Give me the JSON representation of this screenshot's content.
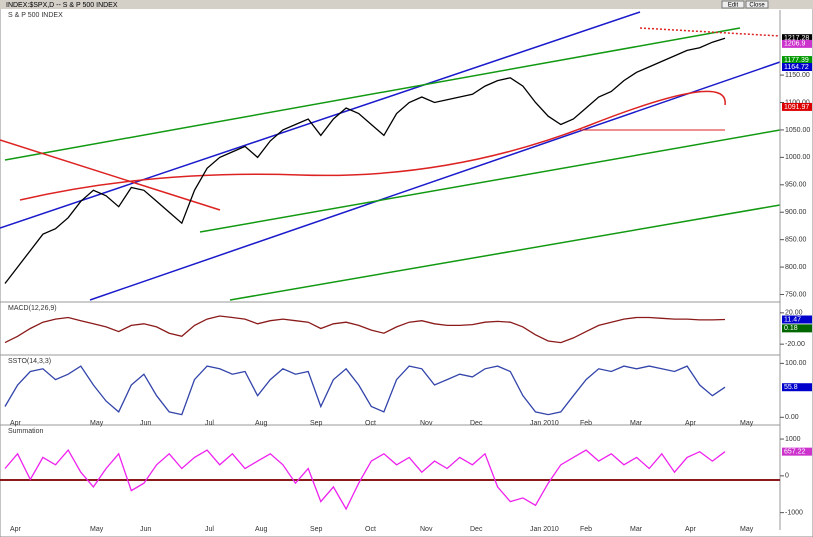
{
  "window_title": "INDEX:$SPX,D -- S & P 500 INDEX",
  "buttons": [
    "Edit",
    "Close"
  ],
  "months": [
    "Apr",
    "May",
    "Jun",
    "Jul",
    "Aug",
    "Sep",
    "Oct",
    "Nov",
    "Dec",
    "Jan 2010",
    "Feb",
    "Mar",
    "Apr",
    "May"
  ],
  "chart_data": [
    {
      "type": "line",
      "title": "S & P 500 INDEX",
      "color": "#000000",
      "values": [
        770,
        800,
        830,
        860,
        870,
        890,
        920,
        940,
        930,
        910,
        945,
        940,
        920,
        900,
        880,
        940,
        980,
        1000,
        1010,
        1020,
        1000,
        1030,
        1050,
        1060,
        1070,
        1040,
        1070,
        1090,
        1080,
        1060,
        1040,
        1080,
        1100,
        1110,
        1100,
        1105,
        1110,
        1115,
        1130,
        1140,
        1145,
        1130,
        1100,
        1075,
        1060,
        1070,
        1090,
        1110,
        1120,
        1140,
        1155,
        1165,
        1175,
        1185,
        1195,
        1200,
        1210,
        1217.28
      ],
      "ylim": [
        740,
        1265
      ],
      "yticks": [
        {
          "value": 750,
          "label": "750.00"
        },
        {
          "value": 800,
          "label": "800.00"
        },
        {
          "value": 850,
          "label": "850.00"
        },
        {
          "value": 900,
          "label": "900.00"
        },
        {
          "value": 950,
          "label": "950.00"
        },
        {
          "value": 1000,
          "label": "1000.00"
        },
        {
          "value": 1050,
          "label": "1050.00"
        },
        {
          "value": 1100,
          "label": "1100.00"
        },
        {
          "value": 1150,
          "label": "1150.00"
        }
      ],
      "price_labels": [
        {
          "value": 1217.28,
          "color": "#000000"
        },
        {
          "value": 1206.9,
          "color": "#cc33cc"
        },
        {
          "value": 1177.39,
          "color": "#009900"
        },
        {
          "value": 1164.72,
          "color": "#0000cc"
        },
        {
          "value": 1091.97,
          "color": "#dd0000"
        }
      ]
    },
    {
      "type": "line",
      "title": "MACD(12,26,9)",
      "color": "#8b1a1a",
      "values": [
        -18,
        -10,
        0,
        8,
        12,
        14,
        10,
        6,
        2,
        -4,
        4,
        6,
        2,
        -6,
        -10,
        4,
        12,
        16,
        14,
        12,
        6,
        10,
        12,
        10,
        8,
        0,
        6,
        8,
        4,
        -2,
        -6,
        2,
        8,
        10,
        6,
        4,
        4,
        5,
        8,
        9,
        8,
        2,
        -8,
        -16,
        -18,
        -12,
        -4,
        4,
        8,
        12,
        14,
        14,
        13,
        12,
        12,
        11,
        11,
        11.47
      ],
      "ylim": [
        -30,
        30
      ],
      "yticks": [
        {
          "value": 20,
          "label": "20.00"
        },
        {
          "value": -20,
          "label": "-20.00"
        }
      ],
      "readouts": [
        {
          "value": 11.47,
          "color": "#0000cc"
        },
        {
          "value": 0.18,
          "color": "#006600"
        }
      ]
    },
    {
      "type": "line",
      "title": "SSTO(14,3,3)",
      "color": "#3344aa",
      "values": [
        20,
        60,
        85,
        90,
        70,
        80,
        95,
        60,
        30,
        10,
        60,
        80,
        40,
        10,
        5,
        70,
        95,
        90,
        80,
        85,
        40,
        70,
        90,
        80,
        85,
        20,
        70,
        90,
        60,
        20,
        10,
        70,
        95,
        90,
        60,
        70,
        80,
        75,
        90,
        95,
        85,
        40,
        10,
        5,
        10,
        40,
        70,
        90,
        85,
        95,
        90,
        95,
        90,
        85,
        95,
        60,
        40,
        55.8
      ],
      "ylim": [
        -5,
        110
      ],
      "yticks": [
        {
          "value": 100,
          "label": "100.00"
        },
        {
          "value": 0,
          "label": "0.00"
        }
      ],
      "readouts": [
        {
          "value": 55.8,
          "color": "#0000cc"
        }
      ]
    },
    {
      "type": "line",
      "title": "Summation",
      "color": "#ee22ee",
      "values": [
        200,
        600,
        -100,
        500,
        300,
        700,
        100,
        -300,
        200,
        600,
        -400,
        -200,
        300,
        600,
        200,
        500,
        700,
        300,
        600,
        200,
        400,
        600,
        300,
        -200,
        200,
        -700,
        -300,
        -900,
        -200,
        400,
        600,
        300,
        500,
        100,
        400,
        200,
        500,
        300,
        600,
        -300,
        -700,
        -600,
        -800,
        -200,
        300,
        500,
        700,
        400,
        600,
        300,
        500,
        200,
        600,
        100,
        500,
        657.22,
        400,
        657.22
      ],
      "ylim": [
        -1200,
        1300
      ],
      "yticks": [
        1000,
        0,
        -1000
      ],
      "readouts": [
        {
          "value": 657.22,
          "color": "#cc33cc"
        }
      ]
    }
  ]
}
